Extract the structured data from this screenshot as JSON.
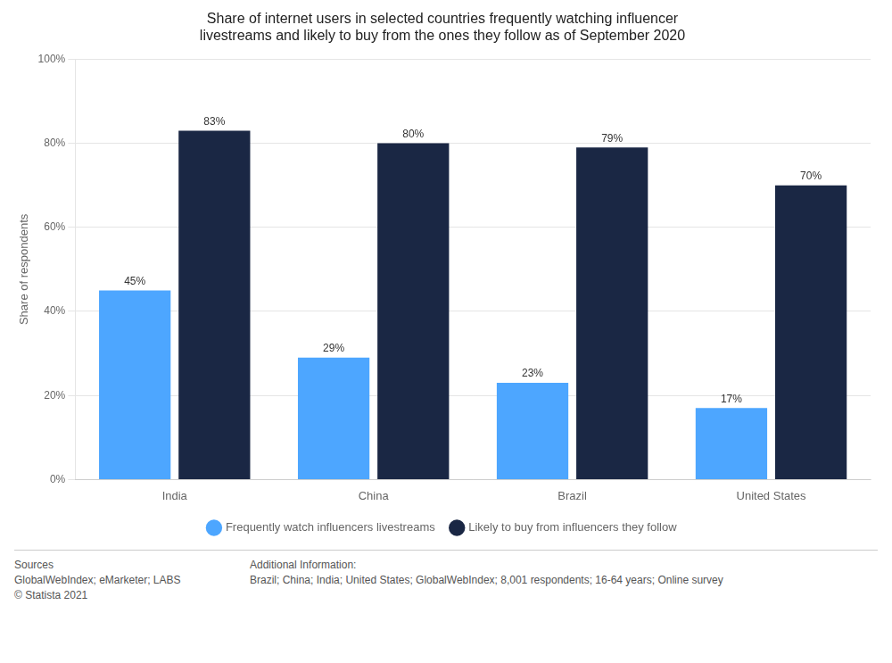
{
  "chart_data": {
    "type": "bar",
    "title": "Share of internet users in selected countries frequently watching influencer\nlivestreams and likely to buy from the ones they follow as of September 2020",
    "categories": [
      "India",
      "China",
      "Brazil",
      "United States"
    ],
    "series": [
      {
        "name": "Frequently watch influencers livestreams",
        "color": "#4DA6FF",
        "values": [
          45,
          29,
          23,
          17
        ],
        "value_labels": [
          "45%",
          "29%",
          "23%",
          "17%"
        ]
      },
      {
        "name": "Likely to buy from influencers they follow",
        "color": "#1A2744",
        "values": [
          83,
          80,
          79,
          70
        ],
        "value_labels": [
          "83%",
          "80%",
          "79%",
          "70%"
        ]
      }
    ],
    "ylabel": "Share of respondents",
    "ylim": [
      0,
      100
    ],
    "yticks": [
      {
        "value": 0,
        "label": "0%"
      },
      {
        "value": 20,
        "label": "20%"
      },
      {
        "value": 40,
        "label": "40%"
      },
      {
        "value": 60,
        "label": "60%"
      },
      {
        "value": 80,
        "label": "80%"
      },
      {
        "value": 100,
        "label": "100%"
      }
    ],
    "grid": true,
    "legend": "bottom",
    "data_labels": true,
    "annotations": [
      "Sources\nGlobalWebIndex; eMarketer; LABS\n© Statista 2021",
      "Additional Information:\nBrazil; China; India; United States; GlobalWebIndex; 8,001 respondents; 16-64 years; Online survey"
    ]
  }
}
